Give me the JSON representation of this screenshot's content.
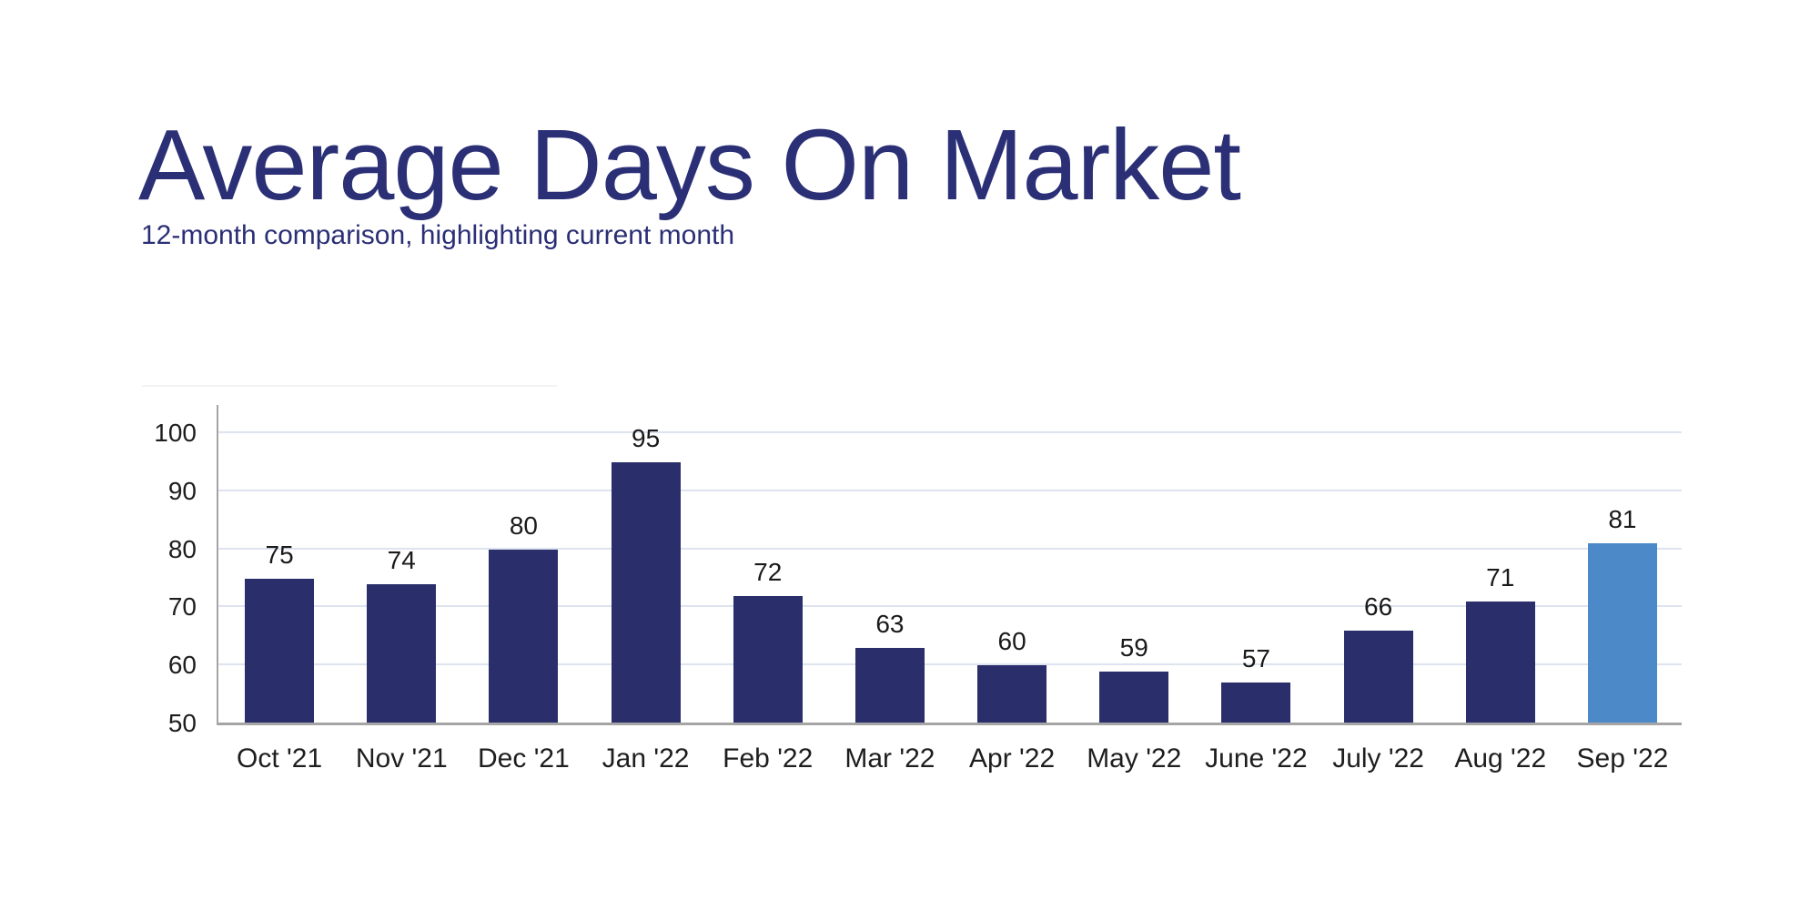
{
  "header": {
    "title": "Average Days On Market",
    "subtitle": "12-month comparison, highlighting current month",
    "title_color": "#2b2f75"
  },
  "chart_data": {
    "type": "bar",
    "title": "Average Days On Market",
    "subtitle": "12-month comparison, highlighting current month",
    "categories": [
      "Oct '21",
      "Nov '21",
      "Dec '21",
      "Jan '22",
      "Feb '22",
      "Mar '22",
      "Apr '22",
      "May '22",
      "June '22",
      "July '22",
      "Aug '22",
      "Sep '22"
    ],
    "values": [
      75,
      74,
      80,
      95,
      72,
      63,
      60,
      59,
      57,
      66,
      71,
      81
    ],
    "highlighted_category": "Sep '22",
    "highlight_index": 11,
    "xlabel": "",
    "ylabel": "",
    "ylim": [
      50,
      100
    ],
    "y_ticks": [
      50,
      60,
      70,
      80,
      90,
      100
    ],
    "grid": "horizontal",
    "legend": "none",
    "colors": {
      "bar": "#2a2f6b",
      "highlight_bar": "#4c89c8",
      "gridline": "#dde3ef",
      "axis": "#a5a5a5",
      "tick_text": "#1e1e1e",
      "value_text": "#1a1a1a"
    }
  }
}
